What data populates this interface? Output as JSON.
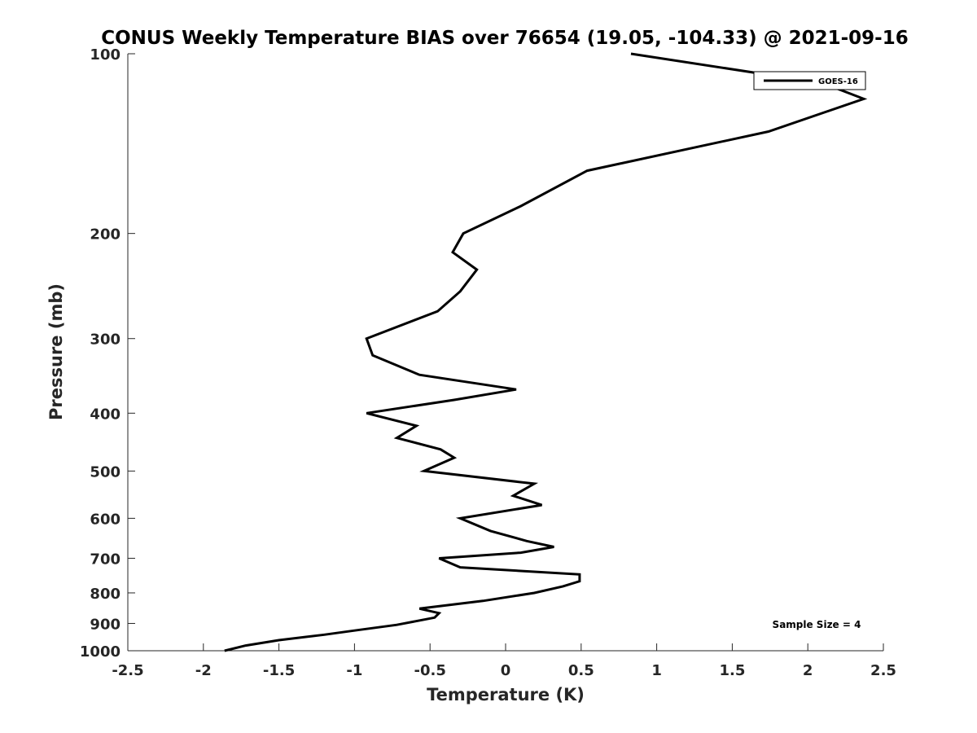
{
  "chart_data": {
    "type": "line",
    "title": "CONUS Weekly Temperature BIAS over 76654 (19.05, -104.33) @ 2021-09-16",
    "xlabel": "Temperature (K)",
    "ylabel": "Pressure (mb)",
    "xlim": [
      -2.5,
      2.5
    ],
    "ylim": [
      1000,
      100
    ],
    "y_scale": "log",
    "y_reversed": true,
    "grid": false,
    "legend_position": "top-right",
    "x_ticks": [
      -2.5,
      -2,
      -1.5,
      -1,
      -0.5,
      0,
      0.5,
      1,
      1.5,
      2,
      2.5
    ],
    "x_tick_labels": [
      "-2.5",
      "-2",
      "-1.5",
      "-1",
      "-0.5",
      "0",
      "0.5",
      "1",
      "1.5",
      "2",
      "2.5"
    ],
    "y_ticks": [
      100,
      200,
      300,
      400,
      500,
      600,
      700,
      800,
      900,
      1000
    ],
    "y_tick_labels": [
      "100",
      "200",
      "300",
      "400",
      "500",
      "600",
      "700",
      "800",
      "900",
      "1000"
    ],
    "annotation": "Sample Size = 4",
    "series": [
      {
        "name": "GOES-16",
        "color": "#000000",
        "points": [
          {
            "x": 0.83,
            "y": 100
          },
          {
            "x": 2.1,
            "y": 112
          },
          {
            "x": 2.37,
            "y": 119
          },
          {
            "x": 1.74,
            "y": 135
          },
          {
            "x": 0.54,
            "y": 157
          },
          {
            "x": 0.1,
            "y": 180
          },
          {
            "x": -0.28,
            "y": 200
          },
          {
            "x": -0.35,
            "y": 215
          },
          {
            "x": -0.19,
            "y": 230
          },
          {
            "x": -0.3,
            "y": 250
          },
          {
            "x": -0.45,
            "y": 270
          },
          {
            "x": -0.92,
            "y": 300
          },
          {
            "x": -0.88,
            "y": 320
          },
          {
            "x": -0.57,
            "y": 345
          },
          {
            "x": 0.07,
            "y": 365
          },
          {
            "x": -0.34,
            "y": 380
          },
          {
            "x": -0.92,
            "y": 400
          },
          {
            "x": -0.59,
            "y": 420
          },
          {
            "x": -0.72,
            "y": 440
          },
          {
            "x": -0.43,
            "y": 460
          },
          {
            "x": -0.34,
            "y": 475
          },
          {
            "x": -0.54,
            "y": 500
          },
          {
            "x": 0.19,
            "y": 525
          },
          {
            "x": 0.05,
            "y": 550
          },
          {
            "x": 0.24,
            "y": 570
          },
          {
            "x": -0.3,
            "y": 600
          },
          {
            "x": -0.1,
            "y": 630
          },
          {
            "x": 0.14,
            "y": 655
          },
          {
            "x": 0.32,
            "y": 670
          },
          {
            "x": 0.1,
            "y": 685
          },
          {
            "x": -0.44,
            "y": 700
          },
          {
            "x": -0.3,
            "y": 725
          },
          {
            "x": 0.49,
            "y": 745
          },
          {
            "x": 0.49,
            "y": 765
          },
          {
            "x": 0.38,
            "y": 780
          },
          {
            "x": 0.19,
            "y": 800
          },
          {
            "x": -0.15,
            "y": 825
          },
          {
            "x": -0.57,
            "y": 850
          },
          {
            "x": -0.44,
            "y": 865
          },
          {
            "x": -0.47,
            "y": 880
          },
          {
            "x": -0.72,
            "y": 905
          },
          {
            "x": -1.0,
            "y": 925
          },
          {
            "x": -1.2,
            "y": 940
          },
          {
            "x": -1.5,
            "y": 960
          },
          {
            "x": -1.72,
            "y": 980
          },
          {
            "x": -1.86,
            "y": 1000
          }
        ]
      }
    ]
  }
}
